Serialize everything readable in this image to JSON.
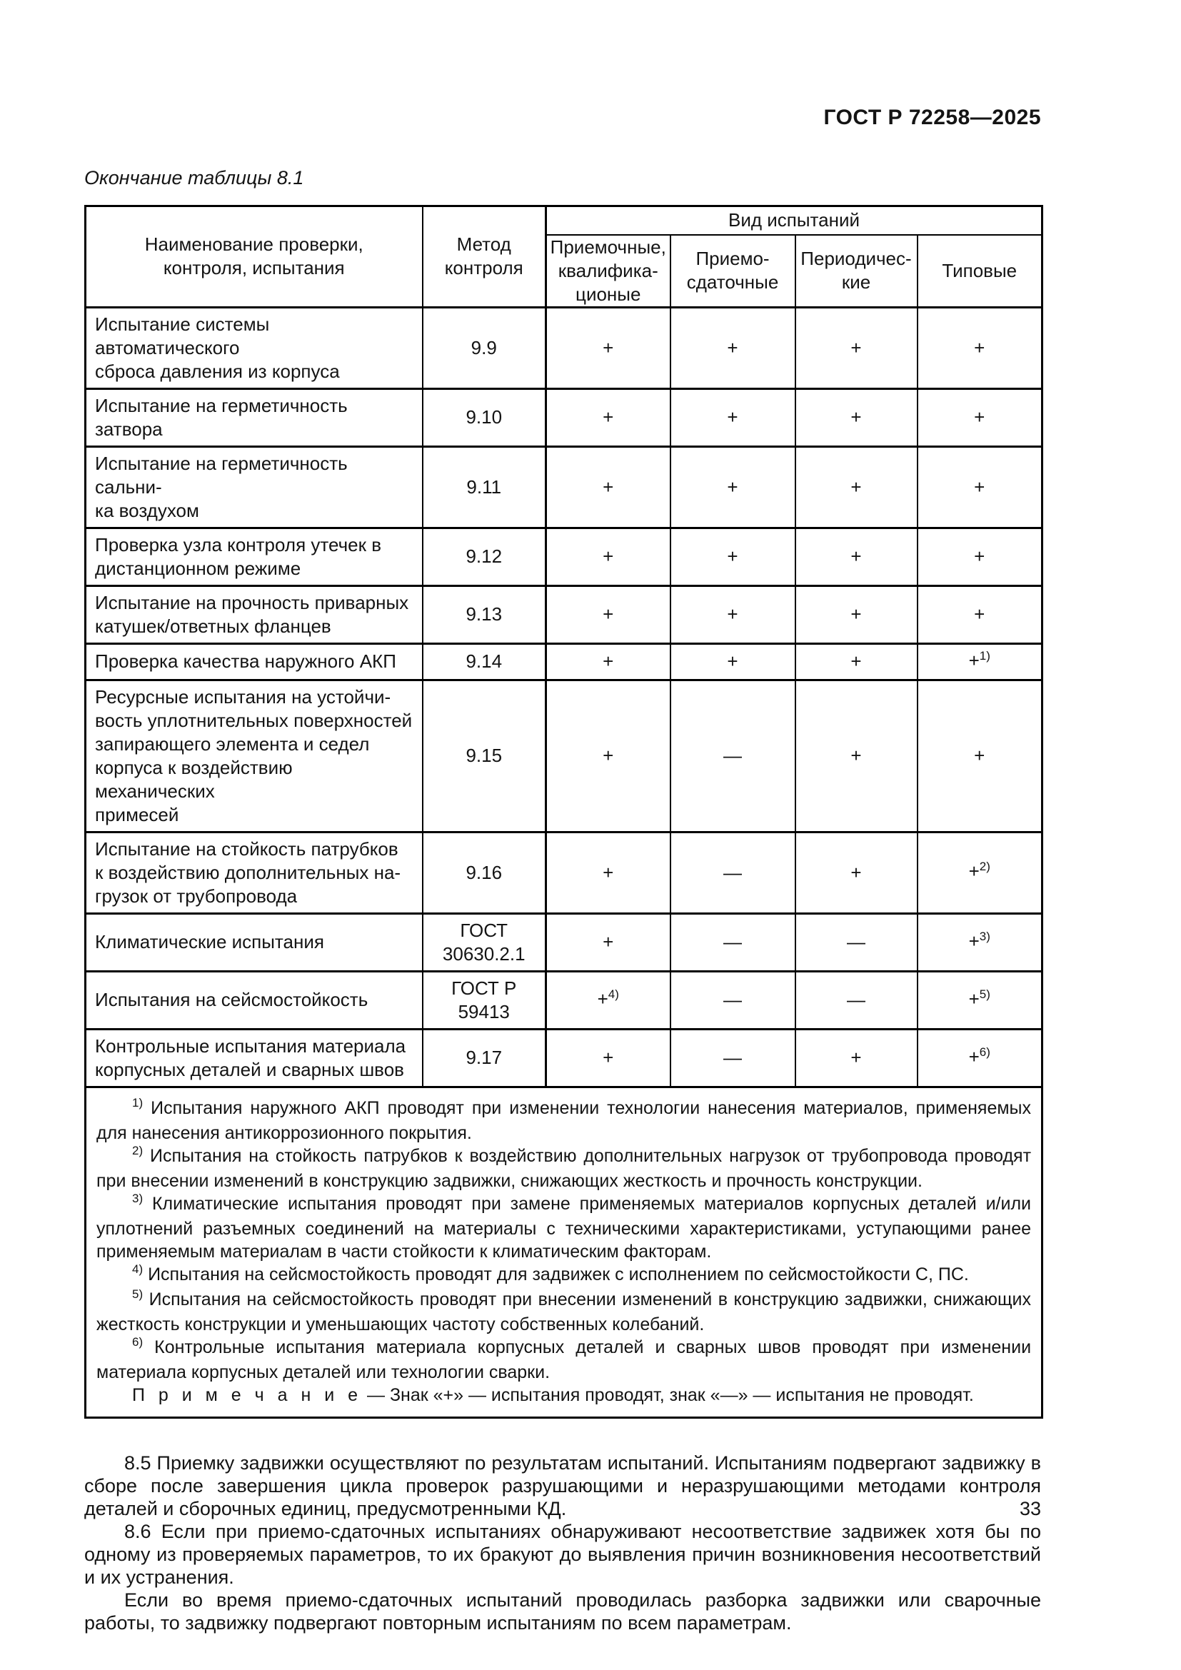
{
  "page": {
    "doc_header": "ГОСТ Р 72258—2025",
    "table_caption": "Окончание таблицы 8.1",
    "page_number": "33"
  },
  "table": {
    "columns": {
      "name": "Наименование проверки,\nконтроля, испытания",
      "method": "Метод\nконтроля",
      "group": "Вид испытаний",
      "sub": [
        "Приемочные,\nквалифика-\nционые",
        "Приемо-\nсдаточные",
        "Периодичес-\nкие",
        "Типовые"
      ]
    },
    "rows": [
      {
        "name": "Испытание системы автоматического\nсброса давления из корпуса",
        "method": "9.9",
        "marks": [
          {
            "s": "+"
          },
          {
            "s": "+"
          },
          {
            "s": "+"
          },
          {
            "s": "+"
          }
        ]
      },
      {
        "name": "Испытание на герметичность затвора",
        "method": "9.10",
        "marks": [
          {
            "s": "+"
          },
          {
            "s": "+"
          },
          {
            "s": "+"
          },
          {
            "s": "+"
          }
        ]
      },
      {
        "name": "Испытание на герметичность сальни-\nка воздухом",
        "method": "9.11",
        "marks": [
          {
            "s": "+"
          },
          {
            "s": "+"
          },
          {
            "s": "+"
          },
          {
            "s": "+"
          }
        ]
      },
      {
        "name": "Проверка узла контроля утечек в\nдистанционном режиме",
        "method": "9.12",
        "marks": [
          {
            "s": "+"
          },
          {
            "s": "+"
          },
          {
            "s": "+"
          },
          {
            "s": "+"
          }
        ]
      },
      {
        "name": "Испытание на прочность приварных\nкатушек/ответных фланцев",
        "method": "9.13",
        "marks": [
          {
            "s": "+"
          },
          {
            "s": "+"
          },
          {
            "s": "+"
          },
          {
            "s": "+"
          }
        ]
      },
      {
        "name": "Проверка качества наружного АКП",
        "method": "9.14",
        "marks": [
          {
            "s": "+"
          },
          {
            "s": "+"
          },
          {
            "s": "+"
          },
          {
            "s": "+",
            "sup": "1)"
          }
        ]
      },
      {
        "name": "Ресурсные испытания на устойчи-\nвость уплотнительных поверхностей\nзапирающего элемента и седел\nкорпуса к воздействию механических\nпримесей",
        "method": "9.15",
        "marks": [
          {
            "s": "+"
          },
          {
            "s": "—"
          },
          {
            "s": "+"
          },
          {
            "s": "+"
          }
        ]
      },
      {
        "name": "Испытание на стойкость патрубков\nк воздействию дополнительных на-\nгрузок от трубопровода",
        "method": "9.16",
        "marks": [
          {
            "s": "+"
          },
          {
            "s": "—"
          },
          {
            "s": "+"
          },
          {
            "s": "+",
            "sup": "2)"
          }
        ]
      },
      {
        "name": "Климатические испытания",
        "method": "ГОСТ\n30630.2.1",
        "marks": [
          {
            "s": "+"
          },
          {
            "s": "—"
          },
          {
            "s": "—"
          },
          {
            "s": "+",
            "sup": "3)"
          }
        ]
      },
      {
        "name": "Испытания на сейсмостойкость",
        "method": "ГОСТ Р\n59413",
        "marks": [
          {
            "s": "+",
            "sup": "4)"
          },
          {
            "s": "—"
          },
          {
            "s": "—"
          },
          {
            "s": "+",
            "sup": "5)"
          }
        ]
      },
      {
        "name": "Контрольные испытания материала\nкорпусных деталей и сварных швов",
        "method": "9.17",
        "marks": [
          {
            "s": "+"
          },
          {
            "s": "—"
          },
          {
            "s": "+"
          },
          {
            "s": "+",
            "sup": "6)"
          }
        ]
      }
    ],
    "footnotes": [
      {
        "marker": "1)",
        "text": "Испытания наружного АКП проводят при изменении технологии нанесения материалов, применяемых для нанесения антикоррозионного покрытия."
      },
      {
        "marker": "2)",
        "text": "Испытания на стойкость патрубков к воздействию дополнительных нагрузок от трубопровода проводят при внесении изменений в конструкцию задвижки, снижающих жесткость и прочность конструкции."
      },
      {
        "marker": "3)",
        "text": "Климатические испытания проводят при замене применяемых материалов корпусных деталей и/или уплотнений разъемных соединений на материалы с техническими характеристиками, уступающими ранее применяемым материалам в части стойкости к климатическим факторам."
      },
      {
        "marker": "4)",
        "text": "Испытания на сейсмостойкость проводят для задвижек с исполнением по сейсмостойкости С, ПС."
      },
      {
        "marker": "5)",
        "text": "Испытания на сейсмостойкость проводят при внесении изменений в конструкцию задвижки, снижающих жесткость конструкции и уменьшающих частоту собственных колебаний."
      },
      {
        "marker": "6)",
        "text": "Контрольные испытания материала корпусных деталей и сварных швов проводят при изменении материала корпусных деталей или технологии сварки."
      }
    ],
    "note": {
      "label": "П р и м е ч а н и е",
      "text": " — Знак «+» — испытания проводят, знак «—» — испытания не проводят."
    }
  },
  "main": {
    "paragraphs": [
      "8.5 Приемку задвижки осуществляют по результатам испытаний. Испытаниям подвергают задвижку в сборе после завершения цикла проверок разрушающими и неразрушающими методами контроля деталей и сборочных единиц, предусмотренными КД.",
      "8.6 Если при приемо-сдаточных испытаниях обнаруживают несоответствие задвижек хотя бы по одному из проверяемых параметров, то их бракуют до выявления причин возникновения несоответствий и их устранения.",
      "Если во время приемо-сдаточных испытаний проводилась разборка задвижки или сварочные работы, то задвижку подвергают повторным испытаниям по всем параметрам."
    ]
  }
}
